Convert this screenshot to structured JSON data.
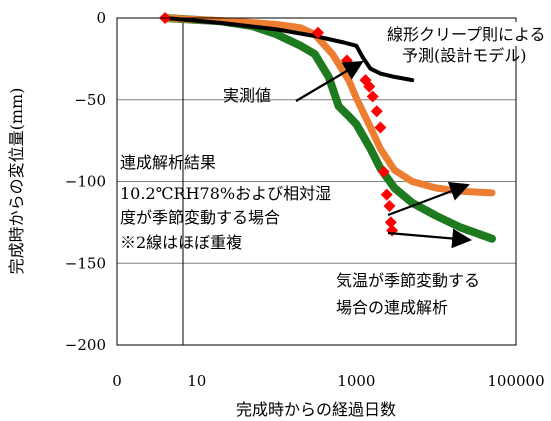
{
  "chart_data": {
    "type": "line",
    "xlabel": "完成時からの経過日数",
    "ylabel": "完成時からの変位量(mm)",
    "xscale": "log",
    "xlim": [
      1,
      100000
    ],
    "ylim": [
      -200,
      0
    ],
    "x_ticks": [
      1,
      10,
      1000,
      100000
    ],
    "x_tick_labels": [
      "0",
      "10",
      "1000",
      "100000"
    ],
    "y_ticks": [
      0,
      -50,
      -100,
      -150,
      -200
    ],
    "y_tick_labels": [
      "0",
      "−50",
      "−100",
      "−150",
      "−200"
    ],
    "grid": "horizontal",
    "colors": {
      "linear_creep": "#000000",
      "measured": "#ff0000",
      "coupled_const": "#ed7d31",
      "coupled_seasonal": "#1e7a1e",
      "arrow": "#000000"
    },
    "series": [
      {
        "key": "linear_creep",
        "type": "line",
        "x": [
          4,
          20,
          100,
          300,
          700,
          1000,
          1200,
          1500,
          2000,
          3000,
          5000
        ],
        "y": [
          0,
          -3,
          -7,
          -11,
          -15,
          -17,
          -24,
          -31,
          -34,
          -36,
          -38
        ]
      },
      {
        "key": "measured",
        "type": "scatter",
        "x": [
          4,
          330,
          760,
          1300,
          1450,
          1600,
          1800,
          2000,
          2200,
          2400,
          2600,
          2700,
          2800
        ],
        "y": [
          0,
          -9,
          -26,
          -38,
          -42,
          -48,
          -57,
          -67,
          -94,
          -108,
          -115,
          -125,
          -130
        ]
      },
      {
        "key": "coupled_const",
        "type": "line",
        "x": [
          4,
          10,
          30,
          100,
          200,
          300,
          500,
          800,
          1000,
          1500,
          2000,
          3000,
          5000,
          10000,
          20000,
          50000
        ],
        "y": [
          0,
          -1,
          -2,
          -4,
          -6,
          -10,
          -22,
          -38,
          -49,
          -67,
          -80,
          -93,
          -100,
          -104,
          -106,
          -107
        ]
      },
      {
        "key": "coupled_seasonal",
        "type": "line",
        "x": [
          4,
          20,
          50,
          100,
          200,
          300,
          450,
          600,
          800,
          1000,
          1500,
          2000,
          3000,
          5000,
          10000,
          20000,
          50000
        ],
        "y": [
          0,
          -2,
          -5,
          -10,
          -17,
          -22,
          -36,
          -54,
          -60,
          -65,
          -80,
          -92,
          -104,
          -113,
          -121,
          -128,
          -135
        ]
      }
    ],
    "annotations": {
      "linear_creep_l1": "線形クリープ則による",
      "linear_creep_l2": "予測(設計モデル)",
      "measured": "実測値",
      "coupled_title": "連成解析結果",
      "coupled_const_l1": "10.2℃RH78%および相対湿",
      "coupled_const_l2": "度が季節変動する場合",
      "coupled_const_l3": "※2線はほぼ重複",
      "seasonal_l1": "気温が季節変動する",
      "seasonal_l2": "場合の連成解析"
    }
  }
}
